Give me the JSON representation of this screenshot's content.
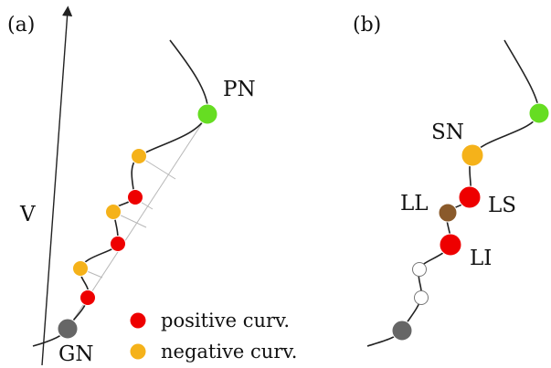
{
  "panels": {
    "a": {
      "label": "(a)",
      "axis_label": "V",
      "point_labels": {
        "pn": "PN",
        "gn": "GN"
      },
      "legend": [
        {
          "label": "positive curv.",
          "color": "#ee0000"
        },
        {
          "label": "negative curv.",
          "color": "#f5b21a"
        }
      ]
    },
    "b": {
      "label": "(b)",
      "point_labels": {
        "sn": "SN",
        "ll": "LL",
        "ls": "LS",
        "li": "LI"
      }
    }
  },
  "colors": {
    "pn": "#66dd22",
    "gn": "#666666",
    "positive": "#ee0000",
    "negative": "#f5b21a",
    "ll": "#8a5a2b",
    "hollow": "#ffffff"
  }
}
